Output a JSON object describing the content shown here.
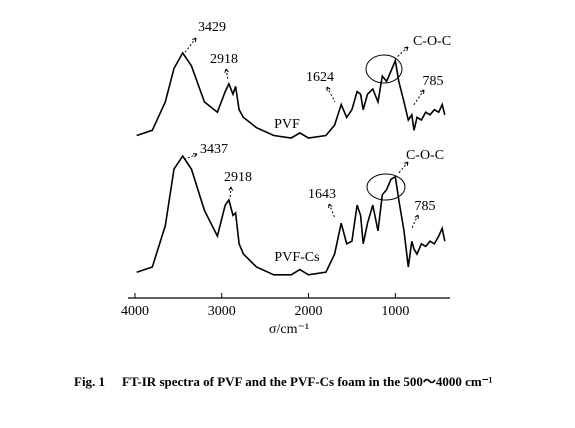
{
  "chart_data": {
    "type": "line",
    "xlabel": "σ/cm⁻¹",
    "xlim": [
      4080,
      370
    ],
    "xticks": [
      4000,
      3000,
      2000,
      1000
    ],
    "ylim": [
      0,
      100
    ],
    "x": [
      3980,
      3800,
      3650,
      3550,
      3450,
      3350,
      3200,
      3050,
      2960,
      2918,
      2870,
      2840,
      2800,
      2750,
      2600,
      2400,
      2200,
      2100,
      2000,
      1800,
      1700,
      1624,
      1560,
      1500,
      1440,
      1400,
      1370,
      1320,
      1260,
      1200,
      1150,
      1100,
      1050,
      1000,
      960,
      900,
      850,
      810,
      785,
      750,
      700,
      650,
      600,
      550,
      500,
      460,
      430
    ],
    "series": [
      {
        "name": "PVF",
        "color": "#000000",
        "values": [
          63,
          65,
          76,
          89,
          95,
          90,
          76,
          72,
          80,
          83,
          79,
          82,
          73,
          70,
          66,
          63,
          62,
          64,
          62,
          63,
          67,
          75,
          70,
          73,
          80,
          79,
          73,
          79,
          81,
          76,
          86,
          84,
          88,
          92,
          84,
          76,
          69,
          71,
          65,
          70,
          69,
          72,
          71,
          73,
          72,
          75,
          71
        ]
      },
      {
        "name": "PVF-Cs",
        "color": "#000000",
        "values": [
          10,
          12,
          28,
          50,
          55,
          50,
          34,
          24,
          36,
          38,
          32,
          33,
          21,
          17,
          12,
          9,
          9,
          11,
          9,
          10,
          17,
          29,
          21,
          22,
          36,
          32,
          21,
          29,
          36,
          26,
          40,
          42,
          46,
          47,
          38,
          26,
          12,
          22,
          19,
          17,
          21,
          20,
          22,
          21,
          24,
          27,
          22
        ]
      }
    ],
    "annotations": [
      "3429",
      "2918",
      "1624",
      "C-O-C",
      "785",
      "3437",
      "2918",
      "1643",
      "C-O-C",
      "785"
    ],
    "caption": {
      "label": "Fig. 1",
      "text": "FT-IR spectra of PVF and the PVF-Cs foam in the 500～4000 cm⁻¹"
    }
  }
}
